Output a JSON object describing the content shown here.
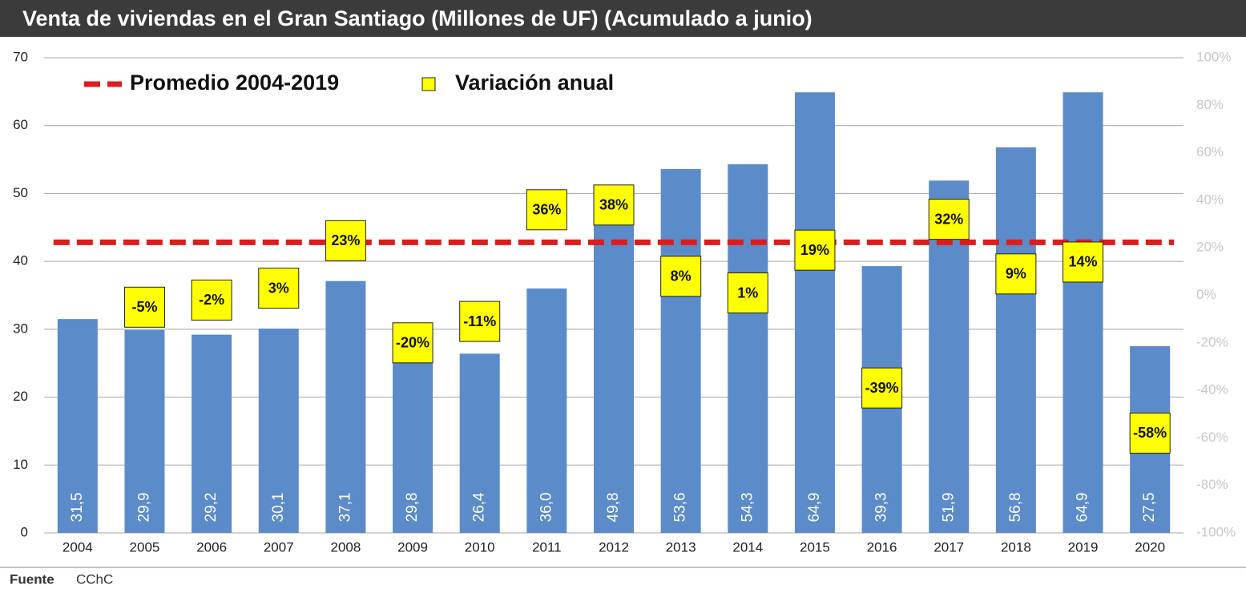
{
  "chart_data": {
    "type": "bar",
    "title": "Venta de viviendas en el Gran Santiago (Millones de UF) (Acumulado a junio)",
    "categories": [
      "2004",
      "2005",
      "2006",
      "2007",
      "2008",
      "2009",
      "2010",
      "2011",
      "2012",
      "2013",
      "2014",
      "2015",
      "2016",
      "2017",
      "2018",
      "2019",
      "2020"
    ],
    "values": [
      31.5,
      29.9,
      29.2,
      30.1,
      37.1,
      29.8,
      26.4,
      36.0,
      49.8,
      53.6,
      54.3,
      64.9,
      39.3,
      51.9,
      56.8,
      64.9,
      27.5
    ],
    "value_labels": [
      "31,5",
      "29,9",
      "29,2",
      "30,1",
      "37,1",
      "29,8",
      "26,4",
      "36,0",
      "49,8",
      "53,6",
      "54,3",
      "64,9",
      "39,3",
      "51,9",
      "56,8",
      "64,9",
      "27,5"
    ],
    "color": "#5b8bc9",
    "ylim": [
      0,
      70
    ],
    "yticks": [
      0,
      10,
      20,
      30,
      40,
      50,
      60,
      70
    ],
    "y2lim": [
      -100,
      100
    ],
    "y2ticks": [
      {
        "value": -100,
        "label": "-100%"
      },
      {
        "value": -80,
        "label": "-80%"
      },
      {
        "value": -60,
        "label": "-60%"
      },
      {
        "value": -40,
        "label": "-40%"
      },
      {
        "value": -20,
        "label": "-20%"
      },
      {
        "value": 0,
        "label": "0%"
      },
      {
        "value": 20,
        "label": "20%"
      },
      {
        "value": 40,
        "label": "40%"
      },
      {
        "value": 60,
        "label": "60%"
      },
      {
        "value": 80,
        "label": "80%"
      },
      {
        "value": 100,
        "label": "100%"
      }
    ],
    "grid": true,
    "average": {
      "name": "Promedio 2004-2019",
      "value": 42.8,
      "color": "#e01b1b"
    },
    "variation": {
      "name": "Variación anual",
      "axis": "y2",
      "color": "#ffff00",
      "values": [
        null,
        -5,
        -2,
        3,
        23,
        -20,
        -11,
        36,
        38,
        8,
        1,
        19,
        -39,
        32,
        9,
        14,
        -58
      ],
      "value_labels": [
        null,
        "-5%",
        "-2%",
        "3%",
        "23%",
        "-20%",
        "-11%",
        "36%",
        "38%",
        "8%",
        "1%",
        "19%",
        "-39%",
        "32%",
        "9%",
        "14%",
        "-58%"
      ]
    },
    "source_label": "Fuente",
    "source": "CChC"
  }
}
